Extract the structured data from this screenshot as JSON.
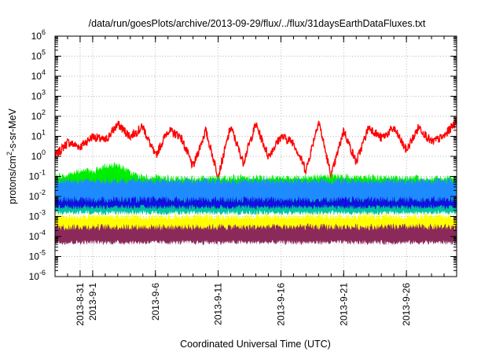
{
  "chart_data": {
    "type": "line",
    "title": "/data/run/goesPlots/archive/2013-09-29/flux/../flux/31daysEarthDataFluxes.txt",
    "xlabel": "Coordinated Universal Time (UTC)",
    "ylabel_parts": {
      "base": "protons/cm",
      "sup": "2",
      "rest": "-s-sr-MeV"
    },
    "y_scale": "log",
    "ylim": [
      1e-06,
      1000000.0
    ],
    "y_ticks": [
      {
        "base": "10",
        "exp": "-6",
        "value": 1e-06
      },
      {
        "base": "10",
        "exp": "-5",
        "value": 1e-05
      },
      {
        "base": "10",
        "exp": "-4",
        "value": 0.0001
      },
      {
        "base": "10",
        "exp": "-3",
        "value": 0.001
      },
      {
        "base": "10",
        "exp": "-2",
        "value": 0.01
      },
      {
        "base": "10",
        "exp": "-1",
        "value": 0.1
      },
      {
        "base": "10",
        "exp": "0",
        "value": 1
      },
      {
        "base": "10",
        "exp": "1",
        "value": 10
      },
      {
        "base": "10",
        "exp": "2",
        "value": 100
      },
      {
        "base": "10",
        "exp": "3",
        "value": 1000
      },
      {
        "base": "10",
        "exp": "4",
        "value": 10000
      },
      {
        "base": "10",
        "exp": "5",
        "value": 100000
      },
      {
        "base": "10",
        "exp": "6",
        "value": 1000000
      }
    ],
    "xlim": [
      "2013-08-29",
      "2013-09-30"
    ],
    "x_ticks": [
      {
        "label": "2013-8-31",
        "date": "2013-08-31"
      },
      {
        "label": "2013-9-1",
        "date": "2013-09-01"
      },
      {
        "label": "2013-9-6",
        "date": "2013-09-06"
      },
      {
        "label": "2013-9-11",
        "date": "2013-09-11"
      },
      {
        "label": "2013-9-16",
        "date": "2013-09-16"
      },
      {
        "label": "2013-9-21",
        "date": "2013-09-21"
      },
      {
        "label": "2013-9-26",
        "date": "2013-09-26"
      }
    ],
    "grid": true,
    "series": [
      {
        "color": "#ff0000",
        "style": "line",
        "x": [
          "2013-08-29",
          "2013-08-30",
          "2013-08-31",
          "2013-09-01",
          "2013-09-02",
          "2013-09-03",
          "2013-09-04",
          "2013-09-05",
          "2013-09-06",
          "2013-09-07",
          "2013-09-08",
          "2013-09-09",
          "2013-09-10",
          "2013-09-11",
          "2013-09-12",
          "2013-09-13",
          "2013-09-14",
          "2013-09-15",
          "2013-09-16",
          "2013-09-17",
          "2013-09-18",
          "2013-09-19",
          "2013-09-20",
          "2013-09-21",
          "2013-09-22",
          "2013-09-23",
          "2013-09-24",
          "2013-09-25",
          "2013-09-26",
          "2013-09-27",
          "2013-09-28",
          "2013-09-29",
          "2013-09-30"
        ],
        "y": [
          1,
          5,
          3,
          10,
          6,
          40,
          10,
          30,
          1,
          20,
          10,
          0.3,
          20,
          0.1,
          30,
          0.5,
          40,
          1,
          10,
          5,
          0.2,
          60,
          0.1,
          20,
          0.5,
          30,
          8,
          25,
          2,
          30,
          5,
          10,
          60
        ]
      },
      {
        "color": "#00ee00",
        "style": "band",
        "x": [
          "2013-08-29",
          "2013-08-30",
          "2013-08-31",
          "2013-09-01",
          "2013-09-02",
          "2013-09-03",
          "2013-09-04",
          "2013-09-05",
          "2013-09-08",
          "2013-09-12",
          "2013-09-16",
          "2013-09-20",
          "2013-09-24",
          "2013-09-28",
          "2013-09-30"
        ],
        "y_low": [
          0.003,
          0.003,
          0.004,
          0.005,
          0.006,
          0.006,
          0.004,
          0.003,
          0.003,
          0.003,
          0.003,
          0.003,
          0.003,
          0.003,
          0.003
        ],
        "y_high": [
          0.1,
          0.12,
          0.2,
          0.18,
          0.3,
          0.4,
          0.15,
          0.09,
          0.08,
          0.09,
          0.09,
          0.1,
          0.09,
          0.08,
          0.08
        ]
      },
      {
        "color": "#00c4a0",
        "style": "band",
        "x": [
          "2013-08-29",
          "2013-09-05",
          "2013-09-12",
          "2013-09-19",
          "2013-09-26",
          "2013-09-30"
        ],
        "y_low": [
          0.0015,
          0.0015,
          0.0015,
          0.0015,
          0.0015,
          0.0015
        ],
        "y_high": [
          0.02,
          0.02,
          0.02,
          0.02,
          0.02,
          0.02
        ]
      },
      {
        "color": "#1e8cff",
        "style": "band",
        "x": [
          "2013-08-29",
          "2013-09-05",
          "2013-09-12",
          "2013-09-19",
          "2013-09-26",
          "2013-09-30"
        ],
        "y_low": [
          0.006,
          0.006,
          0.006,
          0.006,
          0.006,
          0.006
        ],
        "y_high": [
          0.06,
          0.06,
          0.06,
          0.06,
          0.06,
          0.06
        ]
      },
      {
        "color": "#1010e0",
        "style": "band",
        "x": [
          "2013-08-29",
          "2013-09-05",
          "2013-09-12",
          "2013-09-19",
          "2013-09-26",
          "2013-09-30"
        ],
        "y_low": [
          0.003,
          0.003,
          0.003,
          0.003,
          0.003,
          0.003
        ],
        "y_high": [
          0.007,
          0.007,
          0.007,
          0.007,
          0.007,
          0.007
        ]
      },
      {
        "color": "#ffff00",
        "style": "band",
        "x": [
          "2013-08-29",
          "2013-09-05",
          "2013-09-12",
          "2013-09-19",
          "2013-09-26",
          "2013-09-30"
        ],
        "y_low": [
          0.0002,
          0.0002,
          0.0002,
          0.0002,
          0.0002,
          0.0002
        ],
        "y_high": [
          0.001,
          0.001,
          0.001,
          0.001,
          0.001,
          0.001
        ]
      },
      {
        "color": "#8b2a5a",
        "style": "band",
        "x": [
          "2013-08-29",
          "2013-09-05",
          "2013-09-12",
          "2013-09-19",
          "2013-09-26",
          "2013-09-30"
        ],
        "y_low": [
          5e-05,
          5e-05,
          5e-05,
          5e-05,
          5e-05,
          5e-05
        ],
        "y_high": [
          0.0003,
          0.0003,
          0.0003,
          0.0003,
          0.0003,
          0.0003
        ]
      }
    ]
  }
}
